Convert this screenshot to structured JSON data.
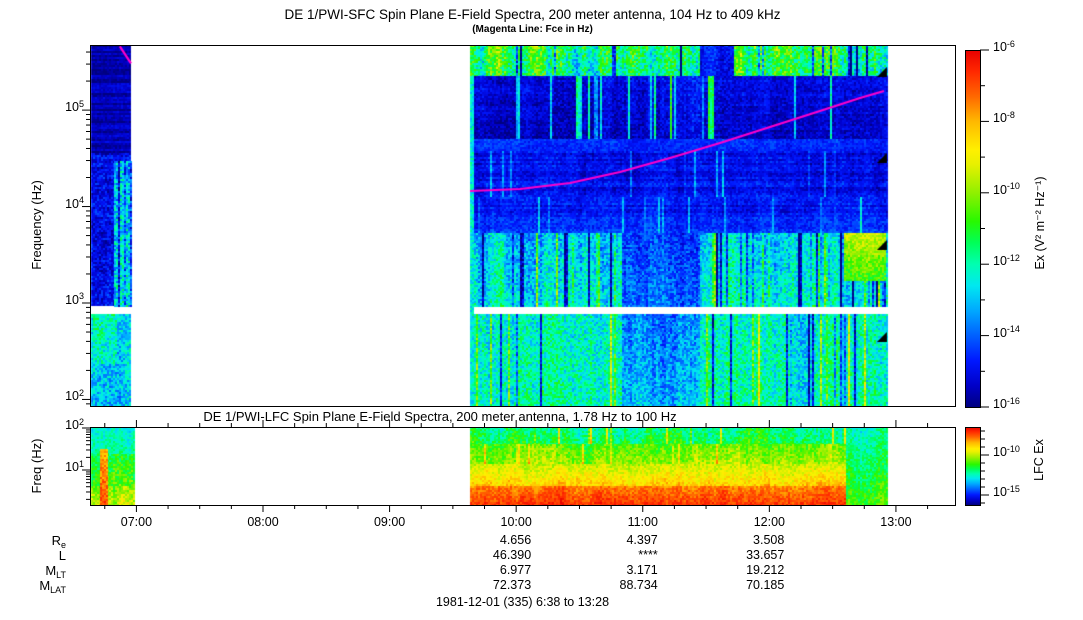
{
  "sfc": {
    "title": "DE 1/PWI-SFC  Spin Plane E-Field Spectra, 200 meter antenna, 104 Hz to 409 kHz",
    "subtitle": "(Magenta Line: Fce in Hz)",
    "ylabel": "Frequency (Hz)",
    "ytick_exponents": [
      5,
      4,
      3,
      2
    ],
    "colorbar": {
      "label": "Ex (V² m⁻² Hz⁻¹)",
      "tick_exponents_major": [
        -6,
        -8,
        -10,
        -12,
        -14,
        -16
      ],
      "tick_exponents_minor": [
        -7,
        -9,
        -11,
        -13,
        -15
      ]
    }
  },
  "lfc": {
    "title": "DE 1/PWI-LFC  Spin Plane E-Field Spectra, 200 meter antenna, 1.78 Hz to 100 Hz",
    "ylabel": "Freq (Hz)",
    "ytick_exponents": [
      2,
      1
    ],
    "colorbar": {
      "label": "LFC Ex",
      "tick_exponents_major": [
        -10,
        -15
      ],
      "tick_exponents_minor": [
        -7,
        -8,
        -9,
        -11,
        -12,
        -13,
        -14,
        -16
      ]
    }
  },
  "xaxis": {
    "hour_labels": [
      "07:00",
      "08:00",
      "09:00",
      "10:00",
      "11:00",
      "12:00",
      "13:00"
    ],
    "time_start": "6:38",
    "time_end": "13:28",
    "minor_tick_minutes": 15
  },
  "ephemeris": {
    "row_labels": [
      {
        "main": "R",
        "sub": "e"
      },
      {
        "main": "L",
        "sub": ""
      },
      {
        "main": "M",
        "sub": "LT"
      },
      {
        "main": "M",
        "sub": "LAT"
      }
    ],
    "columns": [
      {
        "time": "10:00",
        "values": [
          "4.656",
          "46.390",
          "6.977",
          "72.373"
        ]
      },
      {
        "time": "11:00",
        "values": [
          "4.397",
          "****",
          "3.171",
          "88.734"
        ]
      },
      {
        "time": "12:00",
        "values": [
          "3.508",
          "33.657",
          "19.212",
          "70.185"
        ]
      }
    ]
  },
  "footer": {
    "date_range": "1981-12-01 (335) 6:38 to 13:28"
  },
  "colors": {
    "frame": "#000000",
    "fce_line": "#ff00cc",
    "marker": "#000000",
    "palette": [
      [
        0.0,
        "#000080"
      ],
      [
        0.06,
        "#0000c8"
      ],
      [
        0.13,
        "#0018ff"
      ],
      [
        0.2,
        "#0060ff"
      ],
      [
        0.27,
        "#00a8ff"
      ],
      [
        0.34,
        "#00e8f0"
      ],
      [
        0.4,
        "#00ffb0"
      ],
      [
        0.46,
        "#00ff58"
      ],
      [
        0.52,
        "#28f800"
      ],
      [
        0.6,
        "#90f000"
      ],
      [
        0.68,
        "#e8f000"
      ],
      [
        0.72,
        "#fff000"
      ],
      [
        0.8,
        "#ffb800"
      ],
      [
        0.87,
        "#ff6800"
      ],
      [
        0.94,
        "#ff2800"
      ],
      [
        1.0,
        "#e80000"
      ]
    ]
  },
  "chart_data": [
    {
      "type": "heatmap",
      "panel": "sfc",
      "title": "DE 1/PWI-SFC Spin Plane E-Field Spectra",
      "xlabel_times": [
        "07:00",
        "08:00",
        "09:00",
        "10:00",
        "11:00",
        "12:00",
        "13:00"
      ],
      "time_range": [
        "6:38",
        "13:28"
      ],
      "freq_range_hz": [
        104,
        409000
      ],
      "yscale": "log",
      "value_range": [
        1e-16,
        1e-06
      ],
      "value_units": "V^2 m^-2 Hz^-1",
      "data_segments_time": [
        [
          "06:38",
          "06:58"
        ],
        [
          "09:38",
          "12:57"
        ]
      ],
      "data_gap_freq_hz": [
        950,
        1100
      ],
      "seed": 1981,
      "segments_frac": [
        [
          0.001,
          0.0474
        ],
        [
          0.4393,
          0.9225
        ]
      ],
      "white_band_yfrac": [
        0.723,
        0.744
      ],
      "fce_line_frac": [
        [
          0.0345,
          0.004
        ],
        [
          0.0474,
          0.051
        ],
        [
          null,
          null
        ],
        [
          0.4393,
          0.4044
        ],
        [
          0.4971,
          0.3989
        ],
        [
          0.5549,
          0.3823
        ],
        [
          0.6127,
          0.3518
        ],
        [
          0.6705,
          0.313
        ],
        [
          0.7283,
          0.2714
        ],
        [
          0.7861,
          0.2271
        ],
        [
          0.8439,
          0.1828
        ],
        [
          0.8902,
          0.1468
        ],
        [
          0.9179,
          0.1274
        ]
      ],
      "edge_markers_yfrac": [
        0.075,
        0.313,
        0.554,
        0.809
      ],
      "bands": [
        {
          "x0": 0.001,
          "x1": 0.0474,
          "y0": 0.0,
          "y1": 0.3,
          "vT": 0.05,
          "vB": 0.04,
          "col": 0.02,
          "cell": 0.03,
          "row": 0.045
        },
        {
          "x0": 0.001,
          "x1": 0.0474,
          "y0": 0.3,
          "y1": 0.5,
          "vT": 0.09,
          "vB": 0.1,
          "col": 0.05,
          "cell": 0.07,
          "row": 0.03
        },
        {
          "x0": 0.001,
          "x1": 0.0474,
          "y0": 0.5,
          "y1": 0.723,
          "vT": 0.1,
          "vB": 0.13,
          "col": 0.05,
          "cell": 0.08
        },
        {
          "x0": 0.028,
          "x1": 0.0474,
          "y0": 0.32,
          "y1": 0.723,
          "vT": 0.27,
          "vB": 0.33,
          "col": 0.1,
          "cell": 0.13,
          "negP": 0.2,
          "negV": -0.18
        },
        {
          "x0": 0.001,
          "x1": 0.0474,
          "y0": 0.744,
          "y1": 1.0,
          "vT": 0.33,
          "vB": 0.3,
          "col": 0.06,
          "cell": 0.1
        },
        {
          "x0": 0.004,
          "x1": 0.03,
          "y0": 0.744,
          "y1": 0.88,
          "vT": 0.43,
          "vB": 0.38,
          "col": 0.08,
          "cell": 0.1
        },
        {
          "x0": 0.4393,
          "x1": 0.9225,
          "y0": 0.0,
          "y1": 0.085,
          "vT": 0.47,
          "vB": 0.43,
          "col": 0.26,
          "cell": 0.12,
          "negP": 0.08,
          "negV": -0.38
        },
        {
          "x0": 0.705,
          "x1": 0.745,
          "y0": 0.0,
          "y1": 0.085,
          "vT": 0.13,
          "vB": 0.1,
          "col": 0.1,
          "cell": 0.06
        },
        {
          "x0": 0.53,
          "x1": 0.74,
          "y0": 0.085,
          "y1": 0.26,
          "vT": 0.1,
          "vB": 0.06,
          "col": 0.1,
          "cell": 0.06,
          "row": 0.02,
          "stP": 0.22,
          "stV": 0.3
        },
        {
          "x0": 0.4393,
          "x1": 0.53,
          "y0": 0.085,
          "y1": 0.26,
          "vT": 0.09,
          "vB": 0.05,
          "col": 0.06,
          "cell": 0.05,
          "row": 0.02,
          "stP": 0.05,
          "stV": 0.2
        },
        {
          "x0": 0.74,
          "x1": 0.9225,
          "y0": 0.085,
          "y1": 0.26,
          "vT": 0.09,
          "vB": 0.06,
          "col": 0.07,
          "cell": 0.05,
          "row": 0.02,
          "stP": 0.1,
          "stV": 0.22
        },
        {
          "x0": 0.4393,
          "x1": 0.9225,
          "y0": 0.26,
          "y1": 0.295,
          "vT": 0.15,
          "vB": 0.13,
          "col": 0.05,
          "cell": 0.04
        },
        {
          "x0": 0.4393,
          "x1": 0.9225,
          "y0": 0.295,
          "y1": 0.42,
          "vT": 0.1,
          "vB": 0.11,
          "col": 0.06,
          "cell": 0.05,
          "row": 0.03,
          "stP": 0.05,
          "stV": 0.12
        },
        {
          "x0": 0.4393,
          "x1": 0.9225,
          "y0": 0.42,
          "y1": 0.52,
          "vT": 0.11,
          "vB": 0.14,
          "col": 0.07,
          "cell": 0.05,
          "row": 0.03,
          "stP": 0.07,
          "stV": 0.15
        },
        {
          "x0": 0.4393,
          "x1": 0.9225,
          "y0": 0.52,
          "y1": 0.723,
          "vT": 0.3,
          "vB": 0.36,
          "col": 0.15,
          "cell": 0.1,
          "stP": 0.1,
          "stV": 0.18,
          "negP": 0.15,
          "negV": -0.25
        },
        {
          "x0": 0.615,
          "x1": 0.705,
          "y0": 0.52,
          "y1": 0.723,
          "vT": 0.16,
          "vB": 0.22,
          "col": 0.1,
          "cell": 0.08
        },
        {
          "x0": 0.872,
          "x1": 0.92,
          "y0": 0.52,
          "y1": 0.65,
          "vT": 0.64,
          "vB": 0.52,
          "col": 0.05,
          "cell": 0.07
        },
        {
          "x0": 0.4393,
          "x1": 0.9225,
          "y0": 0.744,
          "y1": 1.0,
          "vT": 0.37,
          "vB": 0.4,
          "col": 0.13,
          "cell": 0.1,
          "stP": 0.12,
          "stV": 0.2,
          "negP": 0.1,
          "negV": -0.22
        },
        {
          "x0": 0.615,
          "x1": 0.705,
          "y0": 0.744,
          "y1": 1.0,
          "vT": 0.24,
          "vB": 0.3,
          "col": 0.12,
          "cell": 0.09
        },
        {
          "x0": 0.4393,
          "x1": 0.4445,
          "y0": 0.085,
          "y1": 1.0,
          "vT": 0.36,
          "vB": 0.36,
          "col": 0.0,
          "cell": 0.08
        }
      ]
    },
    {
      "type": "heatmap",
      "panel": "lfc",
      "title": "DE 1/PWI-LFC Spin Plane E-Field Spectra",
      "time_range": [
        "6:38",
        "13:28"
      ],
      "freq_range_hz": [
        1.78,
        100
      ],
      "yscale": "log",
      "value_range": [
        1e-16,
        1e-06
      ],
      "data_segments_time": [
        [
          "06:38",
          "06:58"
        ],
        [
          "09:38",
          "12:57"
        ]
      ],
      "seed": 335,
      "segments_frac": [
        [
          0.001,
          0.052
        ],
        [
          0.4393,
          0.9225
        ]
      ],
      "bands": [
        {
          "x0": 0.001,
          "x1": 0.052,
          "y0": 0.0,
          "y1": 0.35,
          "vT": 0.36,
          "vB": 0.42,
          "col": 0.08,
          "cell": 0.06
        },
        {
          "x0": 0.001,
          "x1": 0.052,
          "y0": 0.35,
          "y1": 0.75,
          "vT": 0.45,
          "vB": 0.52,
          "col": 0.1,
          "cell": 0.08
        },
        {
          "x0": 0.001,
          "x1": 0.052,
          "y0": 0.75,
          "y1": 1.0,
          "vT": 0.58,
          "vB": 0.66,
          "col": 0.1,
          "cell": 0.08
        },
        {
          "x0": 0.011,
          "x1": 0.02,
          "y0": 0.28,
          "y1": 1.0,
          "vT": 0.8,
          "vB": 0.92,
          "col": 0.04,
          "cell": 0.06
        },
        {
          "x0": 0.4393,
          "x1": 0.9225,
          "y0": 0.0,
          "y1": 0.22,
          "vT": 0.42,
          "vB": 0.48,
          "col": 0.14,
          "cell": 0.08,
          "stP": 0.08,
          "stV": 0.22
        },
        {
          "x0": 0.4393,
          "x1": 0.9225,
          "y0": 0.22,
          "y1": 0.48,
          "vT": 0.55,
          "vB": 0.62,
          "col": 0.1,
          "cell": 0.07,
          "stP": 0.06,
          "stV": 0.15
        },
        {
          "x0": 0.4393,
          "x1": 0.9225,
          "y0": 0.48,
          "y1": 0.75,
          "vT": 0.66,
          "vB": 0.78,
          "col": 0.08,
          "cell": 0.06
        },
        {
          "x0": 0.4393,
          "x1": 0.9225,
          "y0": 0.75,
          "y1": 1.0,
          "vT": 0.85,
          "vB": 0.93,
          "col": 0.06,
          "cell": 0.05
        },
        {
          "x0": 0.874,
          "x1": 0.9225,
          "y0": 0.0,
          "y1": 1.0,
          "vT": 0.4,
          "vB": 0.55,
          "col": 0.08,
          "cell": 0.07
        }
      ]
    }
  ]
}
